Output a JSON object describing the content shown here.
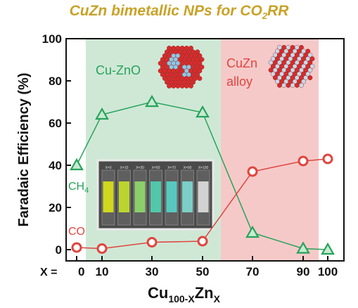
{
  "figure": {
    "title_main": "CuZn bimetallic NPs for CO",
    "title_sub": "2",
    "title_tail": "RR",
    "region_left_label": "Cu-ZnO",
    "region_right_label_line1": "CuZn",
    "region_right_label_line2": "alloy",
    "inset_vial_labels": [
      "X=0",
      "X=10",
      "X=30",
      "X=50",
      "X=70",
      "X=90",
      "X=100"
    ],
    "colors": {
      "title": "#c9a227",
      "region_left": "#cfe8d6",
      "region_right": "#f6c9c9",
      "ch4": "#27a35a",
      "co": "#e0453e",
      "region_left_text": "#27a35a",
      "region_right_text": "#e0453e"
    },
    "icons": [
      "cu-zno-nanoparticle-icon",
      "cuzn-alloy-nanoparticle-icon",
      "vial-photo-inset"
    ]
  },
  "chart_data": {
    "type": "line",
    "xlabel_prefix": "X = ",
    "xlabel_main": "Cu",
    "xlabel_sub1": "100-X",
    "xlabel_mid": "Zn",
    "xlabel_sub2": "X",
    "ylabel": "Faradaic Efficiency (%)",
    "ylim": [
      0,
      100
    ],
    "yticks": [
      0,
      20,
      40,
      60,
      80,
      100
    ],
    "categories": [
      "0",
      "10",
      "30",
      "50",
      "70",
      "90",
      "100"
    ],
    "series": [
      {
        "name": "CH",
        "name_sub": "4",
        "marker": "triangle",
        "values": [
          40,
          64,
          70,
          65,
          8,
          0.5,
          0
        ]
      },
      {
        "name": "CO",
        "marker": "circle",
        "values": [
          1,
          0.5,
          3.5,
          4,
          37,
          42,
          43
        ]
      }
    ],
    "grid": false
  }
}
